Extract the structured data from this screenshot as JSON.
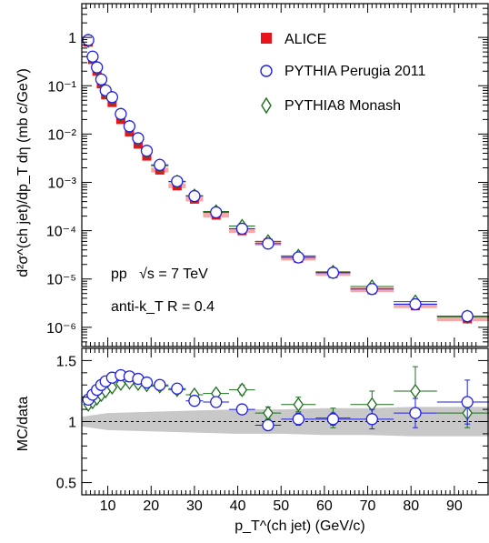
{
  "chart_data": [
    {
      "type": "scatter",
      "panel": "top",
      "log_y": true,
      "xlim": [
        4,
        98
      ],
      "ylim": [
        4e-07,
        5
      ],
      "ylabel": "d²σ^(ch jet)/dp_T dη (mb c/GeV)",
      "ytick_labels": [
        "10⁻⁶",
        "10⁻⁵",
        "10⁻⁴",
        "10⁻³",
        "10⁻²",
        "10⁻¹",
        "1"
      ],
      "annotations": [
        "pp   √s = 7 TeV",
        "anti-k_T R = 0.4"
      ],
      "legend_placement": "top-right",
      "series": [
        {
          "name": "ALICE",
          "color": "#e8141b",
          "marker": "filled-square",
          "x": [
            5.5,
            6.5,
            7.5,
            8.5,
            9.5,
            11,
            13,
            15,
            17,
            19,
            22,
            26,
            30,
            35,
            41,
            47,
            54,
            62,
            71,
            81,
            93
          ],
          "y": [
            0.8,
            0.35,
            0.2,
            0.11,
            0.065,
            0.045,
            0.02,
            0.011,
            0.0062,
            0.0035,
            0.0018,
            0.00085,
            0.00045,
            0.00021,
            0.0001,
            5.5e-05,
            2.7e-05,
            1.3e-05,
            6e-06,
            2.8e-06,
            1.5e-06
          ]
        },
        {
          "name": "PYTHIA Perugia 2011",
          "color": "#1e1eea",
          "marker": "open-circle",
          "x": [
            5.5,
            6.5,
            7.5,
            8.5,
            9.5,
            11,
            13,
            15,
            17,
            19,
            22,
            26,
            30,
            35,
            41,
            47,
            54,
            62,
            71,
            81,
            93
          ],
          "y": [
            0.88,
            0.4,
            0.24,
            0.135,
            0.08,
            0.058,
            0.026,
            0.0145,
            0.0082,
            0.0045,
            0.0023,
            0.00105,
            0.00052,
            0.00024,
            0.00011,
            5.4e-05,
            2.8e-05,
            1.35e-05,
            6.2e-06,
            3e-06,
            1.7e-06
          ]
        },
        {
          "name": "PYTHIA8 Monash",
          "color": "#1e6e1e",
          "marker": "open-diamond",
          "x": [
            5.5,
            6.5,
            7.5,
            8.5,
            9.5,
            11,
            13,
            15,
            17,
            19,
            22,
            26,
            30,
            35,
            41,
            47,
            54,
            62,
            71,
            81,
            93
          ],
          "y": [
            0.85,
            0.38,
            0.23,
            0.13,
            0.075,
            0.055,
            0.025,
            0.014,
            0.0078,
            0.0043,
            0.0022,
            0.00103,
            0.00053,
            0.00025,
            0.000125,
            6e-05,
            3e-05,
            1.4e-05,
            7e-06,
            3.4e-06,
            1.65e-06
          ]
        }
      ]
    },
    {
      "type": "scatter",
      "panel": "bottom",
      "xlim": [
        4,
        98
      ],
      "ylim": [
        0.4,
        1.6
      ],
      "xlabel": "p_T^(ch jet) (GeV/c)",
      "ylabel": "MC/data",
      "xticks": [
        10,
        20,
        30,
        40,
        50,
        60,
        70,
        80,
        90
      ],
      "yticks": [
        0.5,
        1,
        1.5
      ],
      "ytick_labels": [
        "0.5",
        "1",
        "1.5"
      ],
      "reference_line": 1,
      "data_uncertainty_band": {
        "x": [
          4,
          10,
          20,
          30,
          40,
          50,
          60,
          70,
          80,
          90,
          98
        ],
        "lower": [
          0.96,
          0.93,
          0.92,
          0.91,
          0.9,
          0.9,
          0.89,
          0.89,
          0.88,
          0.88,
          0.88
        ],
        "upper": [
          1.04,
          1.07,
          1.08,
          1.09,
          1.1,
          1.1,
          1.11,
          1.11,
          1.12,
          1.12,
          1.12
        ]
      },
      "series": [
        {
          "name": "PYTHIA Perugia 2011",
          "color": "#1e1eea",
          "marker": "open-circle",
          "x": [
            5.5,
            6.5,
            7.5,
            8.5,
            9.5,
            11,
            13,
            15,
            17,
            19,
            22,
            26,
            30,
            35,
            41,
            47,
            54,
            62,
            71,
            81,
            93
          ],
          "y": [
            1.18,
            1.22,
            1.26,
            1.3,
            1.33,
            1.36,
            1.38,
            1.37,
            1.35,
            1.32,
            1.3,
            1.27,
            1.17,
            1.16,
            1.1,
            0.97,
            1.02,
            1.02,
            1.02,
            1.07,
            1.16
          ],
          "xerr": [
            0.5,
            0.5,
            0.5,
            0.5,
            0.5,
            1,
            1,
            1,
            1,
            1,
            2,
            2,
            2,
            3,
            3,
            3,
            4,
            4,
            5,
            5,
            7
          ],
          "yerr": [
            0.01,
            0.01,
            0.01,
            0.01,
            0.01,
            0.01,
            0.01,
            0.01,
            0.01,
            0.01,
            0.01,
            0.01,
            0.02,
            0.02,
            0.02,
            0.03,
            0.05,
            0.05,
            0.08,
            0.12,
            0.18
          ]
        },
        {
          "name": "PYTHIA8 Monash",
          "color": "#1e6e1e",
          "marker": "open-diamond",
          "x": [
            5.5,
            6.5,
            7.5,
            8.5,
            9.5,
            11,
            13,
            15,
            17,
            19,
            22,
            26,
            30,
            35,
            41,
            47,
            54,
            62,
            71,
            81,
            93
          ],
          "y": [
            1.14,
            1.16,
            1.19,
            1.22,
            1.25,
            1.28,
            1.31,
            1.32,
            1.31,
            1.3,
            1.29,
            1.26,
            1.22,
            1.23,
            1.26,
            1.07,
            1.14,
            1.03,
            1.14,
            1.25,
            1.07
          ],
          "xerr": [
            0.5,
            0.5,
            0.5,
            0.5,
            0.5,
            1,
            1,
            1,
            1,
            1,
            2,
            2,
            2,
            3,
            3,
            3,
            4,
            4,
            5,
            5,
            7
          ],
          "yerr": [
            0.01,
            0.01,
            0.01,
            0.01,
            0.01,
            0.01,
            0.01,
            0.01,
            0.01,
            0.01,
            0.01,
            0.02,
            0.02,
            0.03,
            0.04,
            0.05,
            0.06,
            0.08,
            0.11,
            0.2,
            0.12
          ]
        }
      ]
    }
  ]
}
